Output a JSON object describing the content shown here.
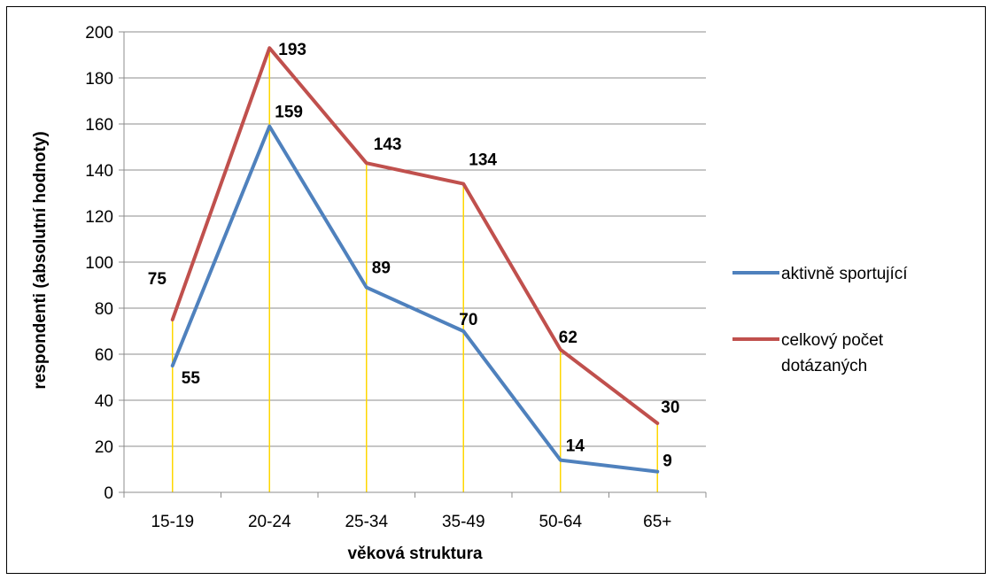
{
  "chart_data": {
    "type": "line",
    "categories": [
      "15-19",
      "20-24",
      "25-34",
      "35-49",
      "50-64",
      "65+"
    ],
    "series": [
      {
        "name": "aktivně sportující",
        "values": [
          55,
          159,
          89,
          70,
          14,
          9
        ],
        "color": "#4f81bd"
      },
      {
        "name": " celkový počet dotázaných",
        "legend_lines": [
          " celkový počet",
          "dotázaných"
        ],
        "values": [
          75,
          193,
          143,
          134,
          62,
          30
        ],
        "color": "#c0504d"
      }
    ],
    "xlabel": "věková struktura",
    "ylabel": "respondenti (absolutní hodnoty)",
    "ylim": [
      0,
      200
    ],
    "yticks": [
      0,
      20,
      40,
      60,
      80,
      100,
      120,
      140,
      160,
      180,
      200
    ],
    "grid": true,
    "legend_position": "right",
    "drop_lines": true,
    "drop_line_color": "#ffd700"
  }
}
